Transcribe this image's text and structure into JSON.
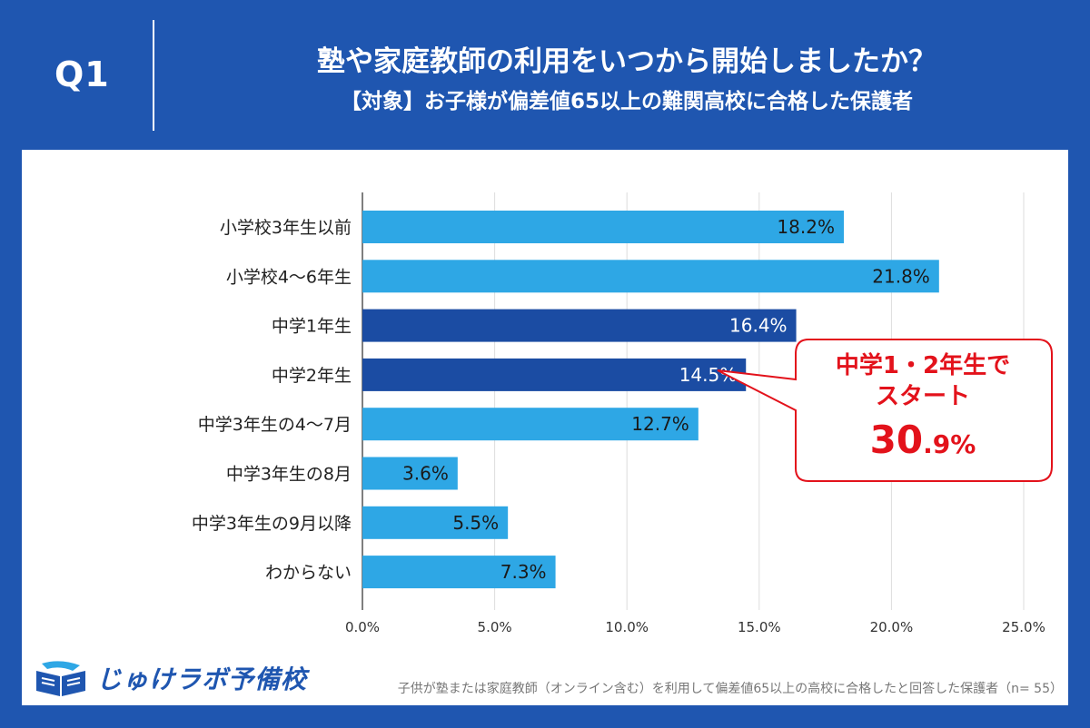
{
  "header": {
    "q_label": "Q1",
    "title": "塾や家庭教師の利用をいつから開始しましたか？",
    "subtitle": "【対象】お子様が偏差値65以上の難関高校に合格した保護者"
  },
  "colors": {
    "background": "#1f56b0",
    "bar_light": "#2ea7e5",
    "bar_dark": "#1b4ca3",
    "callout": "#e3121b"
  },
  "chart_data": {
    "type": "bar",
    "orientation": "horizontal",
    "title": "塾や家庭教師の利用をいつから開始しましたか？",
    "categories": [
      "小学校3年生以前",
      "小学校4～6年生",
      "中学1年生",
      "中学2年生",
      "中学3年生の4～7月",
      "中学3年生の8月",
      "中学3年生の9月以降",
      "わからない"
    ],
    "values": [
      18.2,
      21.8,
      16.4,
      14.5,
      12.7,
      3.6,
      5.5,
      7.3
    ],
    "value_labels": [
      "18.2%",
      "21.8%",
      "16.4%",
      "14.5%",
      "12.7%",
      "3.6%",
      "5.5%",
      "7.3%"
    ],
    "highlight": [
      false,
      false,
      true,
      true,
      false,
      false,
      false,
      false
    ],
    "xlim": [
      0,
      25
    ],
    "xticks": [
      "0.0%",
      "5.0%",
      "10.0%",
      "15.0%",
      "20.0%",
      "25.0%"
    ],
    "xtick_values": [
      0,
      5,
      10,
      15,
      20,
      25
    ],
    "grid": true,
    "xlabel": "",
    "ylabel": ""
  },
  "callout": {
    "line1": "中学1・2年生で",
    "line2": "スタート",
    "value_main": "30",
    "value_decimal": ".9%"
  },
  "logo": {
    "text": "じゅけラボ予備校"
  },
  "footnote": "子供が塾または家庭教師（オンライン含む）を利用して偏差値65以上の高校に合格したと回答した保護者（n= 55）"
}
